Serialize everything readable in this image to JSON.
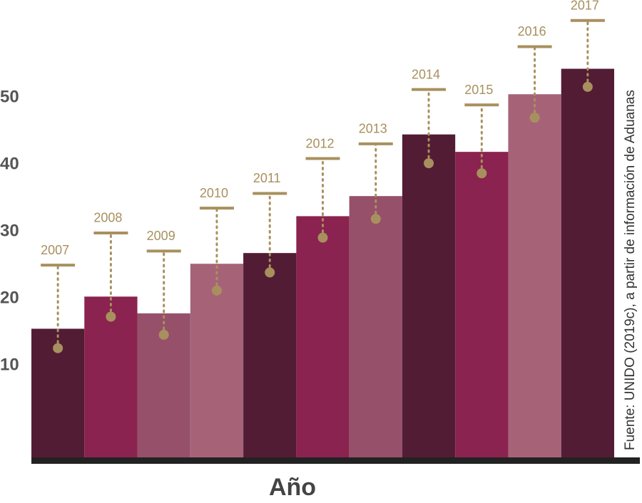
{
  "chart_data": {
    "type": "bar",
    "x_label": "Año",
    "source": "Fuente: UNIDO (2019c), a partir de información de Aduanas",
    "categories": [
      "2007",
      "2008",
      "2009",
      "2010",
      "2011",
      "2012",
      "2013",
      "2014",
      "2015",
      "2016",
      "2017"
    ],
    "series": [
      {
        "values": [
          15.5,
          20.3,
          17.8,
          25.2,
          26.8,
          32.3,
          35.3,
          44.5,
          41.9,
          50.5,
          54.3
        ],
        "colors": [
          "#521c35",
          "#8a2350",
          "#96506a",
          "#a66378",
          "#521c35",
          "#8a2350",
          "#96506a",
          "#521c35",
          "#8a2350",
          "#a66378",
          "#521c35"
        ]
      },
      {
        "values": [
          12.6,
          17.3,
          14.6,
          21.2,
          23.9,
          29.1,
          31.9,
          40.2,
          38.7,
          47.0,
          51.6
        ],
        "color": "#a8905e"
      },
      {
        "values": [
          25.0,
          29.8,
          27.1,
          33.5,
          35.7,
          40.9,
          43.1,
          51.2,
          48.9,
          57.6,
          61.5
        ],
        "color": "#a8905e"
      }
    ],
    "ylim": [
      -3.7,
      63.5
    ],
    "yticks": [
      10,
      20,
      30,
      40,
      50
    ],
    "grid": false
  }
}
